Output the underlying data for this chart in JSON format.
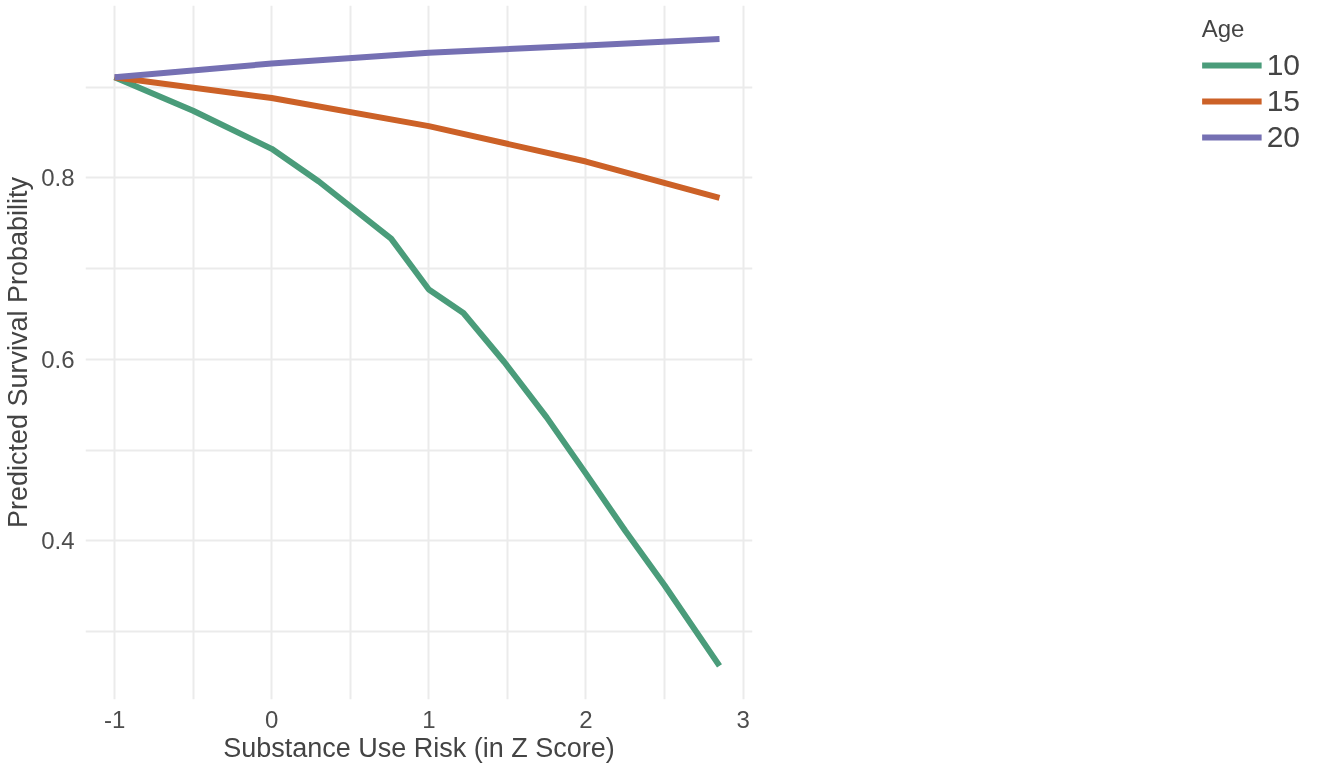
{
  "chart_data": {
    "type": "line",
    "xlabel": "Substance Use Risk (in Z Score)",
    "ylabel": "Predicted Survival Probability",
    "legend_title": "Age",
    "legend": "right",
    "grid": true,
    "line_style": "solid",
    "xlim": [
      -1.185,
      3.06
    ],
    "ylim": [
      0.225,
      0.99
    ],
    "xticks": [
      -1,
      {
        "value": -0.5,
        "label": null
      },
      0,
      {
        "value": 0.5,
        "label": null
      },
      1,
      {
        "value": 1.5,
        "label": null
      },
      2,
      {
        "value": 2.5,
        "label": null
      },
      3
    ],
    "yticks": [
      {
        "value": 0.3,
        "label": null
      },
      0.4,
      {
        "value": 0.5,
        "label": null
      },
      0.6,
      {
        "value": 0.7,
        "label": null
      },
      0.8,
      {
        "value": 0.9,
        "label": null
      }
    ],
    "series": [
      {
        "name": "10",
        "color": "#4a9c7a",
        "x": [
          -1,
          -0.5,
          0,
          0.3,
          0.76,
          1,
          1.22,
          1.48,
          1.75,
          2,
          2.25,
          2.5,
          2.85
        ],
        "values": [
          0.911,
          0.874,
          0.832,
          0.796,
          0.733,
          0.677,
          0.651,
          0.597,
          0.536,
          0.474,
          0.411,
          0.351,
          0.262
        ]
      },
      {
        "name": "15",
        "color": "#cc6127",
        "x": [
          -1,
          0,
          1,
          2,
          2.85
        ],
        "values": [
          0.911,
          0.888,
          0.857,
          0.818,
          0.778
        ]
      },
      {
        "name": "20",
        "color": "#7570b3",
        "x": [
          -1,
          0,
          1,
          2,
          2.85
        ],
        "values": [
          0.911,
          0.926,
          0.938,
          0.946,
          0.953
        ]
      }
    ]
  }
}
